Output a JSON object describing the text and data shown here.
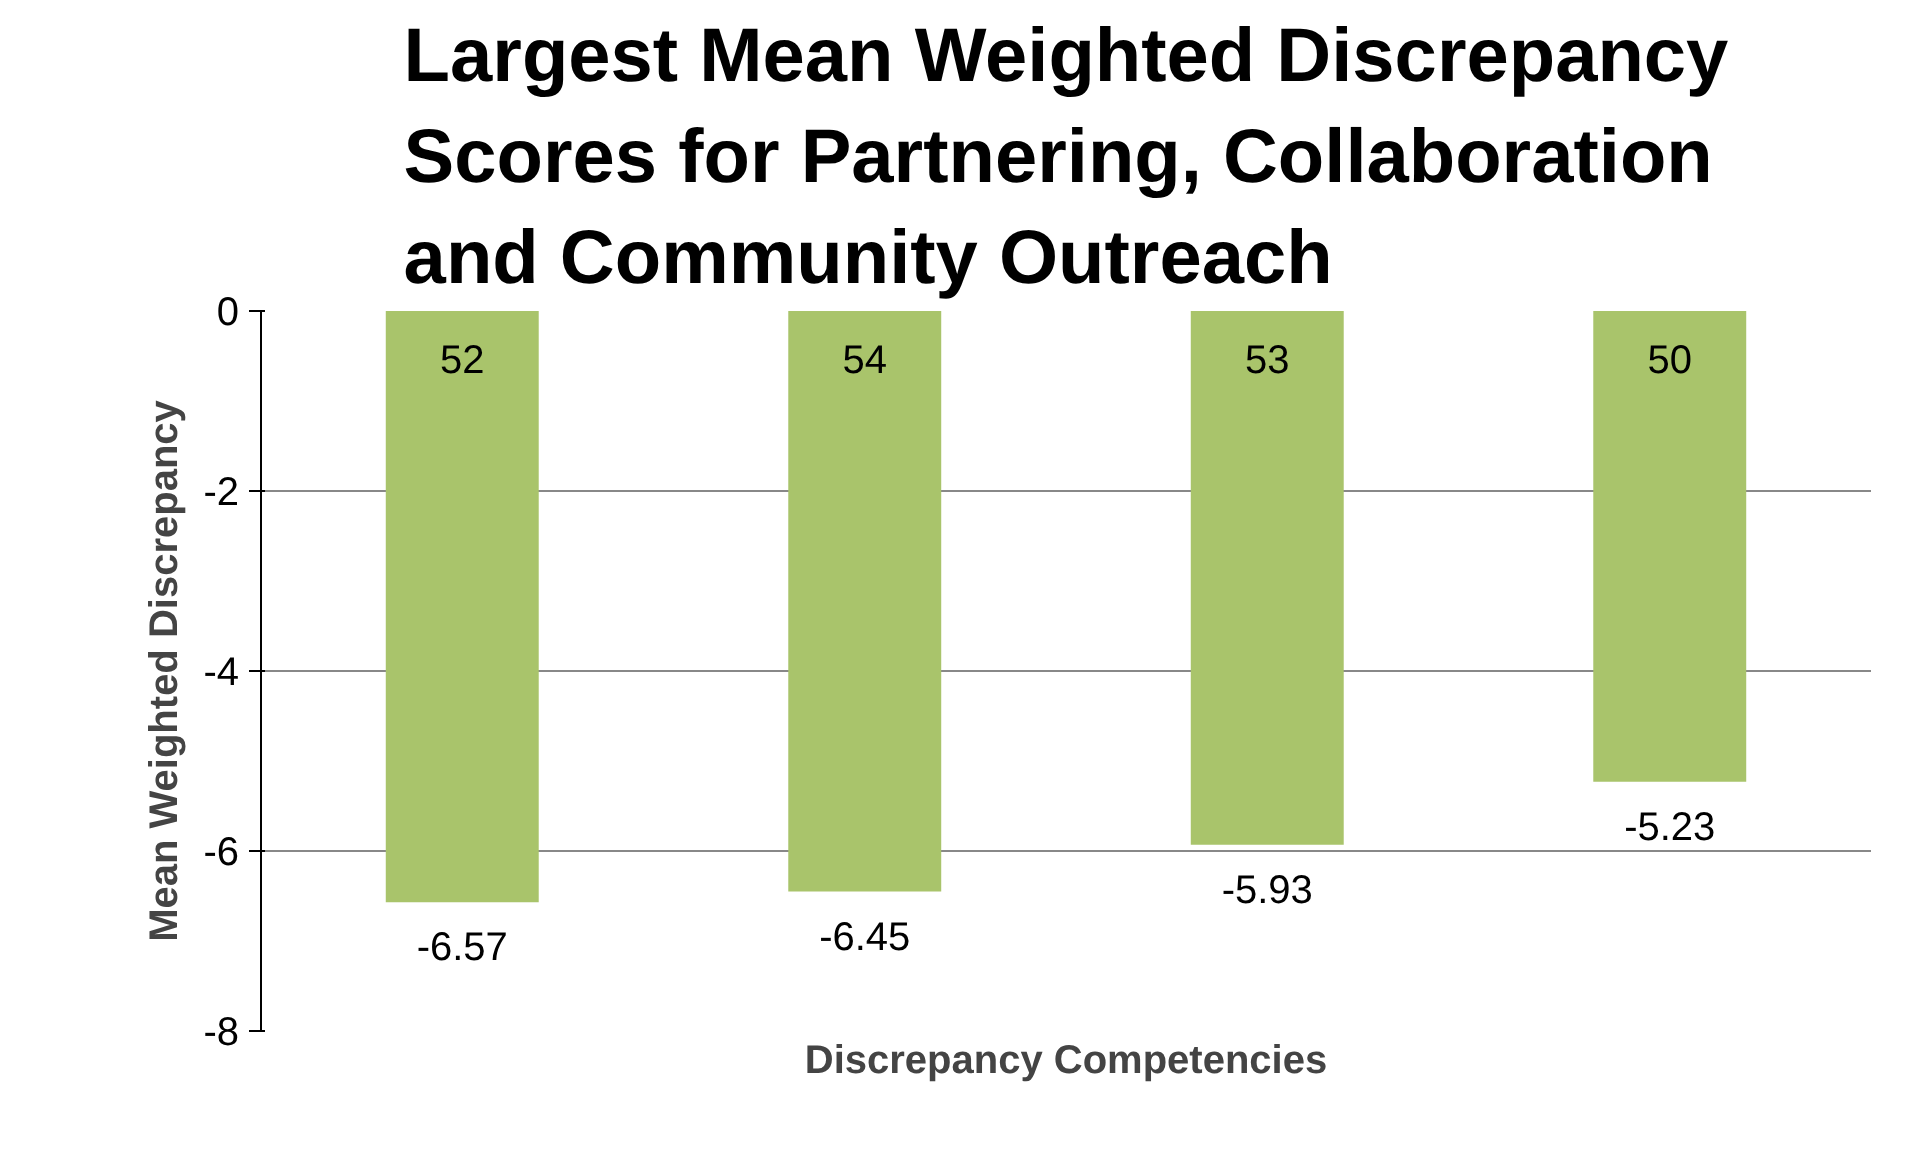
{
  "chart_data": {
    "type": "bar",
    "title": "Largest Mean Weighted Discrepancy Scores for Partnering, Collaboration and Community Outreach",
    "xlabel": "Discrepancy Competencies",
    "ylabel": "Mean Weighted Discrepancy",
    "categories": [
      "52",
      "54",
      "53",
      "50"
    ],
    "values": [
      -6.57,
      -6.45,
      -5.93,
      -5.23
    ],
    "color": "#a9c46b",
    "ylim": [
      -8,
      0
    ],
    "yticks": [
      -8,
      -6,
      -4,
      -2,
      0
    ],
    "grid": "y",
    "data_labels": true
  }
}
